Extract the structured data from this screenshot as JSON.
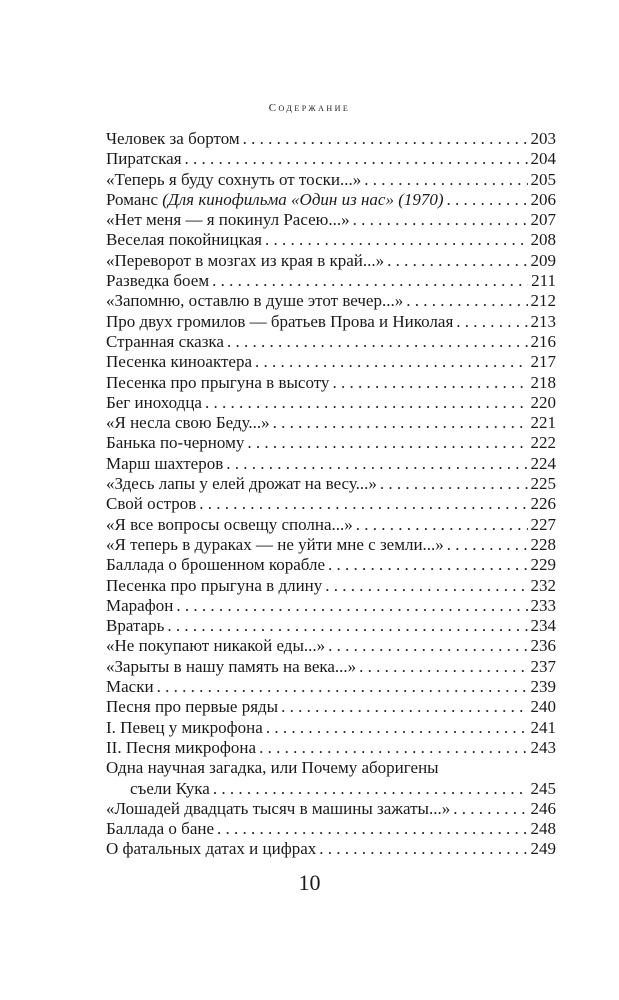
{
  "header": "Содержание",
  "entries": [
    {
      "title": "Человек за бортом",
      "page": "203"
    },
    {
      "title": "Пиратская",
      "page": "204"
    },
    {
      "title": "«Теперь я буду сохнуть от тоски...»",
      "page": "205"
    },
    {
      "title": "Романс ",
      "subtitle": "(Для кинофильма «Один из нас» (1970)",
      "page": "206"
    },
    {
      "title": "«Нет меня — я покинул Расею...»",
      "page": "207"
    },
    {
      "title": "Веселая покойницкая",
      "page": "208"
    },
    {
      "title": "«Переворот в мозгах из края в край...»",
      "page": "209"
    },
    {
      "title": "Разведка боем",
      "page": "211"
    },
    {
      "title": "«Запомню, оставлю в душе этот вечер...»",
      "page": "212"
    },
    {
      "title": "Про двух громилов — братьев Прова и Николая",
      "page": "213"
    },
    {
      "title": "Странная сказка",
      "page": "216"
    },
    {
      "title": "Песенка киноактера",
      "page": "217"
    },
    {
      "title": "Песенка про прыгуна в высоту",
      "page": "218"
    },
    {
      "title": "Бег иноходца",
      "page": "220"
    },
    {
      "title": "«Я несла свою Беду...»",
      "page": "221"
    },
    {
      "title": "Банька по-черному",
      "page": "222"
    },
    {
      "title": "Марш шахтеров",
      "page": "224"
    },
    {
      "title": "«Здесь лапы у елей дрожат на весу...»",
      "page": "225"
    },
    {
      "title": "Свой остров",
      "page": "226"
    },
    {
      "title": "«Я все вопросы освещу сполна...»",
      "page": "227"
    },
    {
      "title": "«Я теперь в дураках — не уйти мне с земли...»",
      "page": "228"
    },
    {
      "title": "Баллада о брошенном корабле",
      "page": "229"
    },
    {
      "title": "Песенка про прыгуна в длину",
      "page": "232"
    },
    {
      "title": "Марафон",
      "page": "233"
    },
    {
      "title": "Вратарь",
      "page": "234"
    },
    {
      "title": "«Не покупают никакой еды...»",
      "page": "236"
    },
    {
      "title": "«Зарыты в нашу память на века...»",
      "page": "237"
    },
    {
      "title": "Маски",
      "page": "239"
    },
    {
      "title": "Песня про первые ряды",
      "page": "240"
    },
    {
      "title": "I. Певец у микрофона",
      "page": "241"
    },
    {
      "title": "II. Песня микрофона",
      "page": "243"
    },
    {
      "title": "Одна научная загадка, или Почему аборигены",
      "continuation": "съели Кука",
      "page": "245"
    },
    {
      "title": "«Лошадей двадцать тысяч в машины зажаты...»",
      "page": "246"
    },
    {
      "title": "Баллада о бане",
      "page": "248"
    },
    {
      "title": "О фатальных датах и цифрах",
      "page": "249"
    }
  ],
  "page_number": "10"
}
